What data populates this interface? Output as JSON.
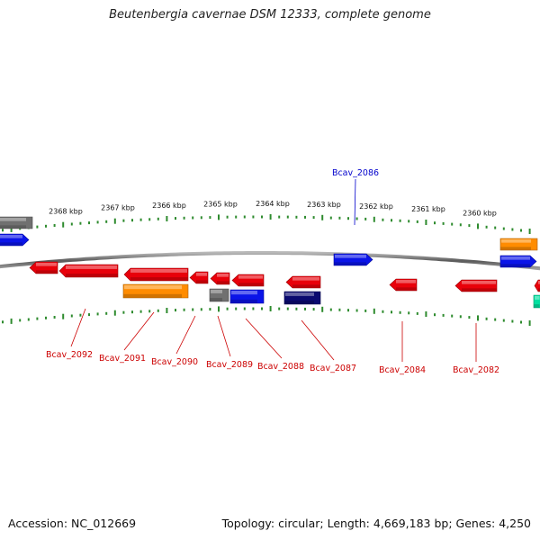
{
  "title": "Beutenbergia cavernae DSM 12333, complete genome",
  "footer": {
    "accession": "Accession: NC_012669",
    "stats": "Topology: circular; Length: 4,669,183 bp; Genes: 4,250"
  },
  "scale_labels": [
    "2368 kbp",
    "2367 kbp",
    "2366 kbp",
    "2365 kbp",
    "2364 kbp",
    "2363 kbp",
    "2362 kbp",
    "2361 kbp",
    "2360 kbp"
  ],
  "gene_labels": {
    "top": [
      "Bcav_2086"
    ],
    "bottom": [
      "Bcav_2092",
      "Bcav_2091",
      "Bcav_2090",
      "Bcav_2089",
      "Bcav_2088",
      "Bcav_2087",
      "Bcav_2084",
      "Bcav_2082"
    ]
  },
  "colors": {
    "red": "#e8000a",
    "blue": "#0a14e8",
    "orange": "#ff8c00",
    "gray": "#707070",
    "navy": "#0a0a70",
    "green": "#00b400",
    "teal": "#00e0a0",
    "label_red": "#cc0000",
    "label_blue": "#0000cc"
  }
}
